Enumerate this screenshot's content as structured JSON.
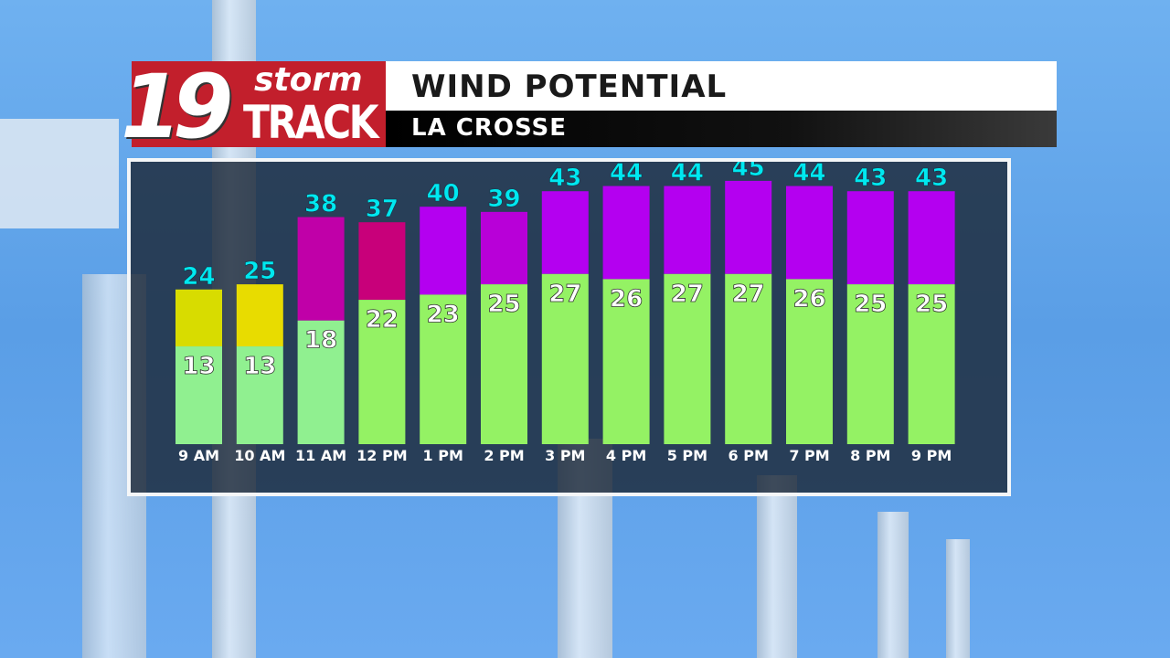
{
  "logo": {
    "number": "19",
    "line1": "storm",
    "line2": "TRACK"
  },
  "header": {
    "title": "WIND POTENTIAL",
    "location": "LA CROSSE"
  },
  "chart_data": {
    "type": "bar",
    "stacked": "overlay",
    "categories": [
      "9 AM",
      "10 AM",
      "11 AM",
      "12 PM",
      "1 PM",
      "2 PM",
      "3 PM",
      "4 PM",
      "5 PM",
      "6 PM",
      "7 PM",
      "8 PM",
      "9 PM"
    ],
    "series": [
      {
        "role": "sustained",
        "values": [
          13,
          13,
          18,
          22,
          23,
          25,
          27,
          26,
          27,
          27,
          26,
          25,
          25
        ],
        "colors": [
          "#90f090",
          "#90f090",
          "#90f090",
          "#94f264",
          "#94f264",
          "#94f264",
          "#94f264",
          "#94f264",
          "#94f264",
          "#94f264",
          "#94f264",
          "#94f264",
          "#94f264"
        ],
        "label_color": "#ffffff"
      },
      {
        "role": "gust",
        "values": [
          24,
          25,
          38,
          37,
          40,
          39,
          43,
          44,
          44,
          45,
          44,
          43,
          43
        ],
        "colors": [
          "#d8dc00",
          "#e8dc00",
          "#c000a8",
          "#c8007a",
          "#b400f0",
          "#b800d8",
          "#b400f0",
          "#b400f0",
          "#b400f0",
          "#b400f0",
          "#b400f0",
          "#b400f0",
          "#b400f0"
        ],
        "label_color": "#00e8f0"
      }
    ],
    "grid": false,
    "legend": "none"
  }
}
